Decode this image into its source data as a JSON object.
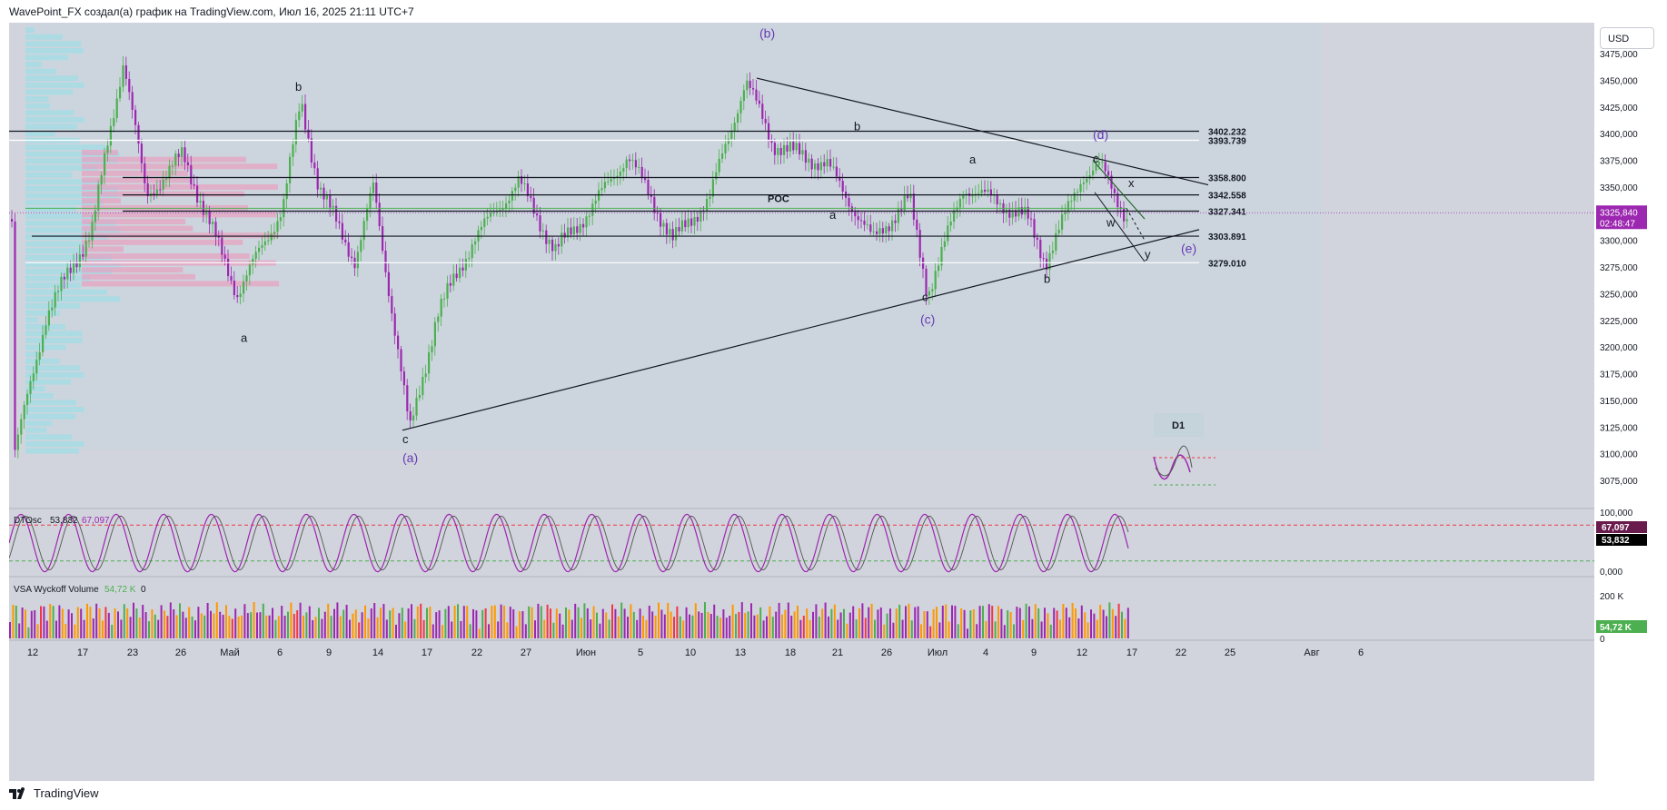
{
  "header": {
    "title": "WavePoint_FX создал(а) график на TradingView.com, Июл 16, 2025 21:11 UTC+7"
  },
  "currency_button": "USD",
  "price_axis": {
    "ticks": [
      "3475,000",
      "3450,000",
      "3425,000",
      "3400,000",
      "3375,000",
      "3350,000",
      "3325,000",
      "3300,000",
      "3275,000",
      "3250,000",
      "3225,000",
      "3200,000",
      "3175,000",
      "3150,000",
      "3125,000",
      "3100,000",
      "3075,000"
    ],
    "current_price": "3325,840",
    "countdown": "02:48:47"
  },
  "levels": [
    {
      "label": "3402.232",
      "value": 3402.232
    },
    {
      "label": "3393.739",
      "value": 3393.739
    },
    {
      "label": "3358.800",
      "value": 3358.8
    },
    {
      "label": "3342.558",
      "value": 3342.558
    },
    {
      "label": "3327.341",
      "value": 3327.341
    },
    {
      "label": "3303.891",
      "value": 3303.891
    },
    {
      "label": "3279.010",
      "value": 3279.01
    }
  ],
  "poc_label": "POC",
  "wave_labels": {
    "a1": "a",
    "b1": "b",
    "c1": "c",
    "A": "(a)",
    "B": "(b)",
    "b2": "b",
    "a2": "a",
    "c2": "c",
    "C": "(c)",
    "a3": "a",
    "b3": "b",
    "c3": "c",
    "D": "(d)",
    "x": "x",
    "w": "w",
    "y": "y",
    "E": "(e)"
  },
  "timeframe_badge": "D1",
  "oscillator": {
    "name": "DTOsc",
    "value1": "53,832",
    "value2": "67,097",
    "axis": [
      "100,000",
      "0,000"
    ],
    "tag1": "67,097",
    "tag2": "53,832"
  },
  "volume": {
    "name": "VSA Wyckoff Volume",
    "value": "54,72 K",
    "suffix": "0",
    "axis": [
      "200 K",
      "0"
    ],
    "tag": "54,72 K"
  },
  "time_axis": [
    "12",
    "17",
    "23",
    "26",
    "Май",
    "6",
    "9",
    "14",
    "17",
    "22",
    "27",
    "Июн",
    "5",
    "10",
    "13",
    "18",
    "21",
    "26",
    "Июл",
    "4",
    "9",
    "12",
    "17",
    "22",
    "25",
    "Авг",
    "6"
  ],
  "footer": {
    "brand": "TradingView"
  },
  "colors": {
    "bull": "#4caf50",
    "bear": "#9c27b0",
    "wave_purple": "#673ab7",
    "price_tag": "#9c27b0",
    "osc_line1": "#9c27b0",
    "osc_line2": "#555555",
    "vol_up": "#4caf50",
    "vol_down": "#9c27b0",
    "vol_high": "#ff9800",
    "vol_climax": "#f23645"
  }
}
